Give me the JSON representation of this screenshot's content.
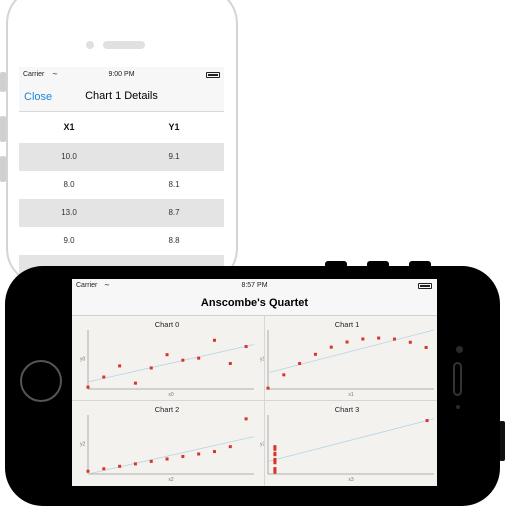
{
  "portrait": {
    "status": {
      "carrier": "Carrier",
      "time": "9:00 PM"
    },
    "nav": {
      "close_label": "Close",
      "title": "Chart 1 Details"
    },
    "table": {
      "headers": [
        "X1",
        "Y1"
      ],
      "rows": [
        [
          "10.0",
          "9.1"
        ],
        [
          "8.0",
          "8.1"
        ],
        [
          "13.0",
          "8.7"
        ],
        [
          "9.0",
          "8.8"
        ]
      ]
    }
  },
  "landscape": {
    "status": {
      "carrier": "Carrier",
      "time": "8:57 PM"
    },
    "nav": {
      "title": "Anscombe's Quartet"
    }
  },
  "colors": {
    "point": "#d8342a",
    "line": "#b6d3e4",
    "link": "#1a88d8"
  },
  "chart_data": [
    {
      "type": "scatter",
      "title": "Chart 0",
      "xlabel": "x0",
      "ylabel": "y0",
      "xlim": [
        4,
        14.5
      ],
      "ylim": [
        4,
        12
      ],
      "x": [
        4,
        5,
        6,
        7,
        8,
        9,
        10,
        11,
        12,
        13,
        14
      ],
      "y": [
        4.26,
        5.68,
        7.24,
        4.82,
        6.95,
        8.81,
        8.04,
        8.33,
        10.84,
        7.58,
        9.96
      ],
      "trendline": [
        [
          4,
          5.0
        ],
        [
          14.5,
          10.25
        ]
      ]
    },
    {
      "type": "scatter",
      "title": "Chart 1",
      "xlabel": "x1",
      "ylabel": "y1",
      "xlim": [
        4,
        14.5
      ],
      "ylim": [
        3,
        10
      ],
      "x": [
        4,
        5,
        6,
        7,
        8,
        9,
        10,
        11,
        12,
        13,
        14
      ],
      "y": [
        3.1,
        4.74,
        6.13,
        7.26,
        8.14,
        8.77,
        9.14,
        9.26,
        9.13,
        8.74,
        8.1
      ],
      "trendline": [
        [
          4,
          5.0
        ],
        [
          14.5,
          10.25
        ]
      ]
    },
    {
      "type": "scatter",
      "title": "Chart 2",
      "xlabel": "x2",
      "ylabel": "y2",
      "xlim": [
        4,
        14.5
      ],
      "ylim": [
        5,
        13
      ],
      "x": [
        4,
        5,
        6,
        7,
        8,
        9,
        10,
        11,
        12,
        13,
        14
      ],
      "y": [
        5.39,
        5.73,
        6.08,
        6.42,
        6.77,
        7.11,
        7.46,
        7.81,
        8.15,
        8.84,
        12.74
      ],
      "trendline": [
        [
          4,
          5.0
        ],
        [
          14.5,
          10.25
        ]
      ]
    },
    {
      "type": "scatter",
      "title": "Chart 3",
      "xlabel": "x3",
      "ylabel": "y3",
      "xlim": [
        7.5,
        19.5
      ],
      "ylim": [
        5,
        13
      ],
      "x": [
        8,
        8,
        8,
        8,
        8,
        8,
        8,
        8,
        8,
        8,
        19
      ],
      "y": [
        5.25,
        5.56,
        5.76,
        6.58,
        6.89,
        7.04,
        7.71,
        7.91,
        8.47,
        8.84,
        12.5
      ],
      "trendline": [
        [
          7.5,
          6.75
        ],
        [
          19.5,
          12.75
        ]
      ]
    }
  ]
}
